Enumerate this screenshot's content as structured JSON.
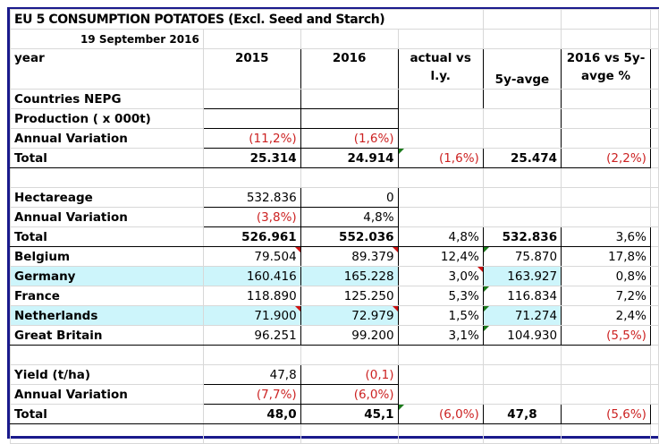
{
  "title": "EU 5 CONSUMPTION POTATOES (Excl. Seed and Starch)",
  "date": "19 September 2016",
  "header": {
    "label": "year",
    "col_2015": "2015",
    "col_2016": "2016",
    "actual_vs_ly": [
      "actual vs",
      "l.y."
    ],
    "five_y_avge": "5y-avge",
    "vs_5y_pct": [
      "2016 vs 5y-",
      "avge %"
    ]
  },
  "colors": {
    "negative": "#cc2222",
    "highlight": "#cdf5fb",
    "frame": "#1a1a8c"
  },
  "production": {
    "section_label": "Countries NEPG",
    "subtitle": "Production ( x 000t)",
    "annual_variation": {
      "label": "Annual Variation",
      "y2015": "(11,2%)",
      "y2016": "(1,6%)"
    },
    "total": {
      "label": "Total",
      "y2015": "25.314",
      "y2016": "24.914",
      "actual_vs_ly": "(1,6%)",
      "avg5y": "25.474",
      "vs_avg_pct": "(2,2%)"
    }
  },
  "hectareage": {
    "header": {
      "label": "Hectareage",
      "y2015": "532.836",
      "y2016": "0"
    },
    "annual_variation": {
      "label": "Annual Variation",
      "y2015": "(3,8%)",
      "y2016": "4,8%"
    },
    "total": {
      "label": "Total",
      "y2015": "526.961",
      "y2016": "552.036",
      "actual_vs_ly": "4,8%",
      "avg5y": "532.836",
      "vs_avg_pct": "3,6%"
    },
    "countries": [
      {
        "label": "Belgium",
        "y2015": "79.504",
        "y2016": "89.379",
        "actual_vs_ly": "12,4%",
        "avg5y": "75.870",
        "vs_avg_pct": "17,8%"
      },
      {
        "label": "Germany",
        "y2015": "160.416",
        "y2016": "165.228",
        "actual_vs_ly": "3,0%",
        "avg5y": "163.927",
        "vs_avg_pct": "0,8%"
      },
      {
        "label": "France",
        "y2015": "118.890",
        "y2016": "125.250",
        "actual_vs_ly": "5,3%",
        "avg5y": "116.834",
        "vs_avg_pct": "7,2%"
      },
      {
        "label": "Netherlands",
        "y2015": "71.900",
        "y2016": "72.979",
        "actual_vs_ly": "1,5%",
        "avg5y": "71.274",
        "vs_avg_pct": "2,4%"
      },
      {
        "label": "Great Britain",
        "y2015": "96.251",
        "y2016": "99.200",
        "actual_vs_ly": "3,1%",
        "avg5y": "104.930",
        "vs_avg_pct": "(5,5%)"
      }
    ]
  },
  "yield": {
    "header": {
      "label": "Yield (t/ha)",
      "y2015": "47,8",
      "y2016": "(0,1)"
    },
    "annual_variation": {
      "label": "Annual Variation",
      "y2015": "(7,7%)",
      "y2016": "(6,0%)"
    },
    "total": {
      "label": "Total",
      "y2015": "48,0",
      "y2016": "45,1",
      "actual_vs_ly": "(6,0%)",
      "avg5y": "47,8",
      "vs_avg_pct": "(5,6%)"
    }
  }
}
